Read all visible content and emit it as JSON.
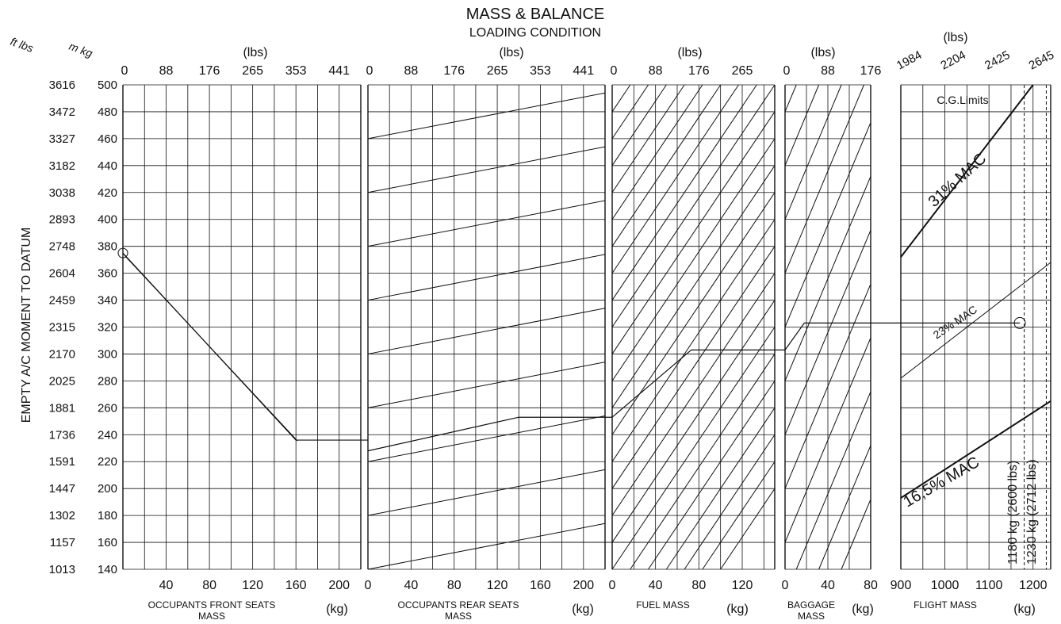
{
  "chart_data": {
    "type": "line",
    "title": "MASS & BALANCE",
    "subtitle": "LOADING CONDITION",
    "y_axis": {
      "label": "EMPTY A/C MOMENT TO DATUM",
      "unit_ftlbs": "ft lbs",
      "unit_mkg": "m kg",
      "ticks_mkg": [
        "500",
        "480",
        "460",
        "440",
        "420",
        "400",
        "380",
        "360",
        "340",
        "320",
        "300",
        "280",
        "260",
        "240",
        "220",
        "200",
        "180",
        "160",
        "140"
      ],
      "ticks_ftlbs": [
        "3616",
        "3472",
        "3327",
        "3182",
        "3038",
        "2893",
        "2748",
        "2604",
        "2459",
        "2315",
        "2170",
        "2025",
        "1881",
        "1736",
        "1591",
        "1447",
        "1302",
        "1157",
        "1013"
      ],
      "range_mkg": [
        140,
        500
      ]
    },
    "panels": [
      {
        "id": "front",
        "xlabel": "OCCUPANTS  FRONT SEATS",
        "xlabel2": "MASS",
        "unit_kg": "(kg)",
        "unit_lbs": "(lbs)",
        "kg_ticks": [
          "40",
          "80",
          "120",
          "160",
          "200"
        ],
        "lbs_ticks": [
          "0",
          "88",
          "176",
          "265",
          "353",
          "441"
        ],
        "xlim_kg": [
          0,
          220
        ]
      },
      {
        "id": "rear",
        "xlabel": "OCCUPANTS  REAR SEATS",
        "xlabel2": "MASS",
        "unit_kg": "(kg)",
        "unit_lbs": "(lbs)",
        "kg_ticks": [
          "0",
          "40",
          "80",
          "120",
          "160",
          "200"
        ],
        "lbs_ticks": [
          "0",
          "88",
          "176",
          "265",
          "353",
          "441"
        ],
        "xlim_kg": [
          0,
          220
        ]
      },
      {
        "id": "fuel",
        "xlabel": "FUEL MASS",
        "xlabel2": "",
        "unit_kg": "(kg)",
        "unit_lbs": "(lbs)",
        "kg_ticks": [
          "0",
          "40",
          "80",
          "120"
        ],
        "lbs_ticks": [
          "0",
          "88",
          "176",
          "265"
        ],
        "xlim_kg": [
          0,
          150
        ]
      },
      {
        "id": "baggage",
        "xlabel": "BAGGAGE",
        "xlabel2": "MASS",
        "unit_kg": "(kg)",
        "unit_lbs": "(lbs)",
        "kg_ticks": [
          "0",
          "40",
          "80"
        ],
        "lbs_ticks": [
          "0",
          "88",
          "176"
        ],
        "xlim_kg": [
          0,
          80
        ]
      },
      {
        "id": "flight",
        "xlabel": "FLIGHT MASS",
        "xlabel2": "",
        "unit_kg": "(kg)",
        "unit_lbs": "(lbs)",
        "kg_ticks": [
          "900",
          "1000",
          "1100",
          "1200"
        ],
        "lbs_ticks": [
          "1984",
          "2204",
          "2425",
          "2645"
        ],
        "xlim_kg": [
          900,
          1240
        ]
      }
    ],
    "cg_limits": {
      "title": "C.G.Limits",
      "mac_31": "31% MAC",
      "mac_23": "23% MAC",
      "mac_165": "16,5% MAC",
      "limit_1180": "1180 kg (2600 lbs)",
      "limit_1230": "1230 kg (2712 lbs)"
    },
    "example_path": {
      "empty_moment_mkg": 375,
      "front_seats_kg": 160,
      "rear_seats_kg": 140,
      "fuel_kg": 73,
      "baggage_kg": 18,
      "flight_mass_kg": 1170,
      "final_moment_mkg": 323
    },
    "grid": true
  }
}
